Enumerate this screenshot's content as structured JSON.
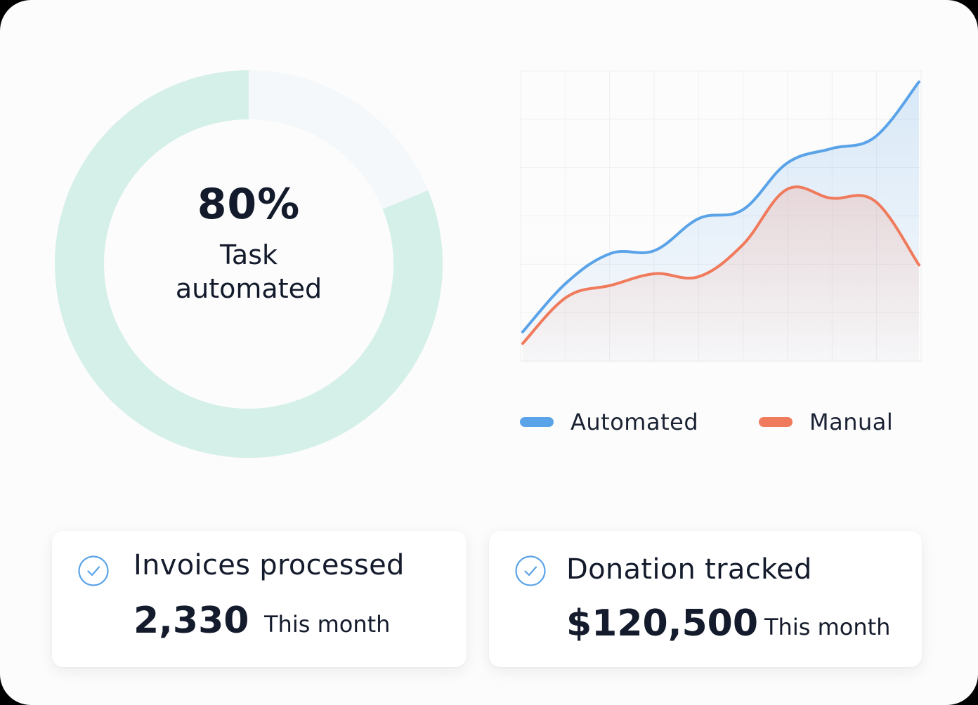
{
  "colors": {
    "accent_blue": "#5aa3e8",
    "accent_orange": "#f07a5c",
    "donut_track": "#d5f0e8",
    "donut_remaining": "#f4f8fa",
    "text_dark": "#141b2c"
  },
  "donut": {
    "percent_value": 80,
    "percent_label": "80%",
    "caption": "Task automated"
  },
  "chart_data": {
    "type": "area",
    "x": [
      0,
      1,
      2,
      3,
      4,
      5,
      6,
      7,
      8,
      9
    ],
    "ylim": [
      0,
      10
    ],
    "grid": true,
    "legend_position": "bottom",
    "series": [
      {
        "name": "Automated",
        "color": "#5aa3e8",
        "values": [
          1.0,
          2.7,
          3.7,
          3.8,
          4.9,
          5.2,
          6.8,
          7.3,
          7.7,
          9.6
        ]
      },
      {
        "name": "Manual",
        "color": "#f07a5c",
        "values": [
          0.6,
          2.2,
          2.6,
          3.0,
          2.9,
          4.0,
          5.9,
          5.6,
          5.5,
          3.3
        ]
      }
    ]
  },
  "legend": {
    "items": [
      {
        "label": "Automated",
        "color": "#5aa3e8",
        "icon": "line-swatch-icon"
      },
      {
        "label": "Manual",
        "color": "#f07a5c",
        "icon": "line-swatch-icon"
      }
    ]
  },
  "stats": [
    {
      "icon": "check-circle-icon",
      "title": "Invoices processed",
      "value": "2,330",
      "period": "This month"
    },
    {
      "icon": "check-circle-icon",
      "title": "Donation tracked",
      "value": "$120,500",
      "period": "This month"
    }
  ]
}
